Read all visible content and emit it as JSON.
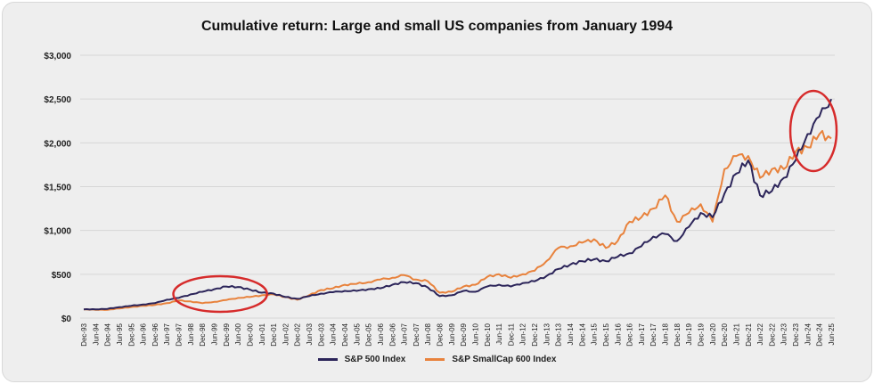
{
  "chart_data": {
    "type": "line",
    "title": "Cumulative return: Large and small US companies from January 1994",
    "xlabel": "",
    "ylabel": "",
    "ylim": [
      0,
      3000
    ],
    "yticks": [
      "$0",
      "$500",
      "$1,000",
      "$1,500",
      "$2,000",
      "$2,500",
      "$3,000"
    ],
    "ytick_values": [
      0,
      500,
      1000,
      1500,
      2000,
      2500,
      3000
    ],
    "grid": true,
    "legend_placement": "bottom",
    "x": [
      "Dec-93",
      "Jun-94",
      "Dec-94",
      "Jun-95",
      "Dec-95",
      "Jun-96",
      "Dec-96",
      "Jun-97",
      "Dec-97",
      "Jun-98",
      "Dec-98",
      "Jun-99",
      "Dec-99",
      "Jun-00",
      "Dec-00",
      "Jun-01",
      "Dec-01",
      "Jun-02",
      "Dec-02",
      "Jun-03",
      "Dec-03",
      "Jun-04",
      "Dec-04",
      "Jun-05",
      "Dec-05",
      "Jun-06",
      "Dec-06",
      "Jun-07",
      "Dec-07",
      "Jun-08",
      "Dec-08",
      "Jun-09",
      "Dec-09",
      "Jun-10",
      "Dec-10",
      "Jun-11",
      "Dec-11",
      "Jun-12",
      "Dec-12",
      "Jun-13",
      "Dec-13",
      "Jun-14",
      "Dec-14",
      "Jun-15",
      "Dec-15",
      "Jun-16",
      "Dec-16",
      "Jun-17",
      "Dec-17",
      "Jun-18",
      "Dec-18",
      "Jun-19",
      "Dec-19",
      "Jun-20",
      "Dec-20",
      "Jun-21",
      "Dec-21",
      "Jun-22",
      "Dec-22",
      "Jun-23",
      "Dec-23",
      "Jun-24",
      "Dec-24",
      "Jun-25"
    ],
    "series": [
      {
        "name": "S&P 500 Index",
        "color": "#2b2459",
        "values": [
          100,
          100,
          105,
          125,
          140,
          155,
          170,
          210,
          230,
          270,
          300,
          330,
          360,
          355,
          325,
          290,
          280,
          240,
          220,
          250,
          280,
          295,
          310,
          310,
          330,
          340,
          380,
          410,
          400,
          350,
          250,
          260,
          310,
          300,
          360,
          380,
          360,
          400,
          420,
          480,
          560,
          610,
          650,
          670,
          650,
          700,
          740,
          820,
          930,
          960,
          880,
          1040,
          1200,
          1150,
          1420,
          1650,
          1800,
          1400,
          1450,
          1600,
          1800,
          2100,
          2300,
          2500
        ]
      },
      {
        "name": "S&P SmallCap 600 Index",
        "color": "#e8823c",
        "values": [
          100,
          95,
          95,
          110,
          125,
          140,
          150,
          170,
          200,
          190,
          170,
          185,
          205,
          230,
          240,
          260,
          270,
          240,
          210,
          260,
          320,
          340,
          380,
          390,
          410,
          440,
          460,
          490,
          440,
          420,
          290,
          300,
          360,
          380,
          470,
          500,
          460,
          500,
          540,
          650,
          800,
          820,
          860,
          900,
          800,
          880,
          1100,
          1150,
          1250,
          1400,
          1100,
          1200,
          1300,
          1100,
          1700,
          1850,
          1850,
          1600,
          1700,
          1700,
          1900,
          1950,
          2100,
          2050
        ]
      }
    ],
    "annotations": [
      {
        "shape": "ellipse",
        "color": "#d62b2b",
        "x_range": [
          "Dec-97",
          "Jun-01"
        ]
      },
      {
        "shape": "ellipse",
        "color": "#d62b2b",
        "x_range": [
          "Dec-23",
          "Jun-25"
        ]
      }
    ]
  }
}
